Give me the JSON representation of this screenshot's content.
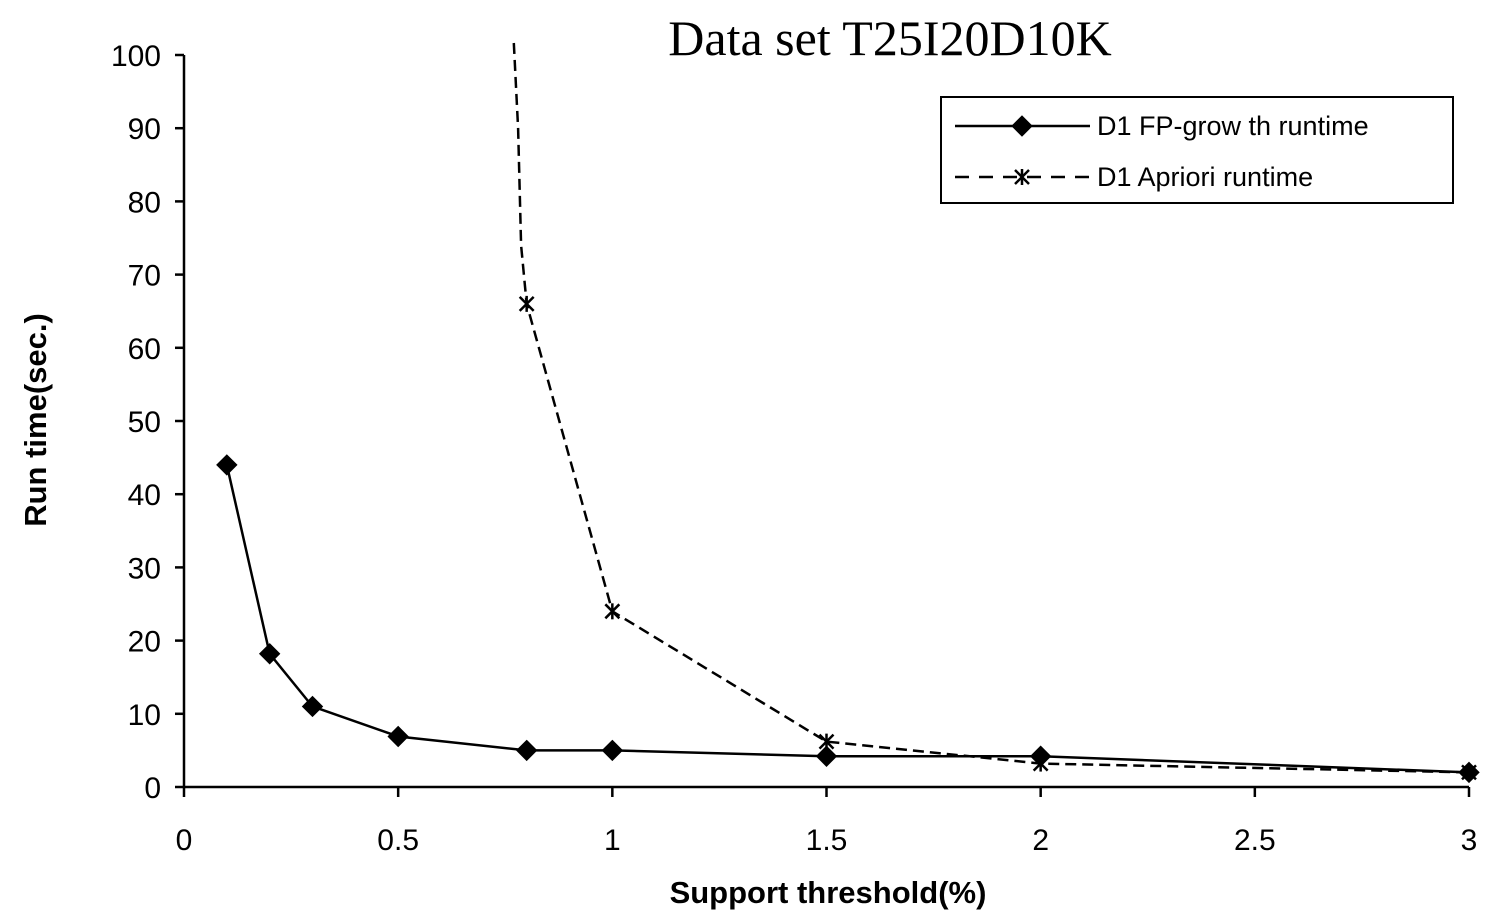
{
  "chart_data": {
    "type": "line",
    "title": "Data set T25I20D10K",
    "xlabel": "Support threshold(%)",
    "ylabel": "Run time(sec.)",
    "xlim": [
      0,
      3
    ],
    "ylim": [
      0,
      100
    ],
    "xticks": [
      0,
      0.5,
      1,
      1.5,
      2,
      2.5,
      3
    ],
    "xtick_labels": [
      "0",
      "0.5",
      "1",
      "1.5",
      "2",
      "2.5",
      "3"
    ],
    "yticks": [
      0,
      10,
      20,
      30,
      40,
      50,
      60,
      70,
      80,
      90,
      100
    ],
    "ytick_labels": [
      "0",
      "10",
      "20",
      "30",
      "40",
      "50",
      "60",
      "70",
      "80",
      "90",
      "100"
    ],
    "grid": false,
    "legend_position": "top-right",
    "series": [
      {
        "name": "D1 FP-grow th runtime",
        "style": "solid",
        "marker": "diamond",
        "color": "#000000",
        "x": [
          0.1,
          0.2,
          0.3,
          0.5,
          0.8,
          1,
          1.5,
          2,
          3
        ],
        "y": [
          44,
          18.2,
          11,
          6.9,
          5,
          5,
          4.2,
          4.2,
          2
        ]
      },
      {
        "name": "D1 Apriori runtime",
        "style": "dashed",
        "marker": "asterisk",
        "color": "#000000",
        "x": [
          0.8,
          1,
          1.5,
          2,
          3
        ],
        "y": [
          66,
          24,
          6.2,
          3.2,
          2
        ],
        "continues_above_ylim": true
      }
    ]
  }
}
